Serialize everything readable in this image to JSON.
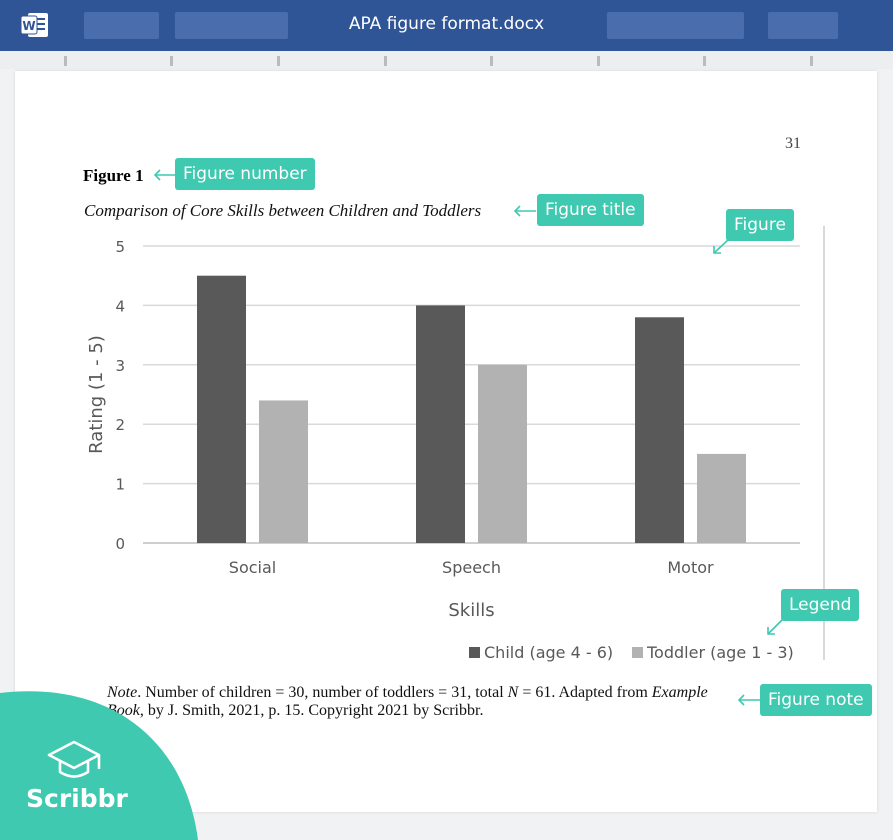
{
  "window": {
    "title": "APA figure format.docx",
    "app_icon": "word-icon"
  },
  "page": {
    "number": "31"
  },
  "figure": {
    "number_label": "Figure 1",
    "title": "Comparison of Core Skills between Children and Toddlers"
  },
  "note": {
    "label": "Note",
    "text1": ". Number of children = 30, number of toddlers = 31, total ",
    "n": "N",
    "text2": " = 61. Adapted from ",
    "book": "Example Book",
    "text3": ", by J. Smith, 2021, p. 15. Copyright 2021 by Scribbr."
  },
  "callouts": {
    "figure_number": "Figure number",
    "figure_title": "Figure title",
    "figure": "Figure",
    "legend": "Legend",
    "figure_note": "Figure note",
    "color": "#3ec9b0"
  },
  "brand": {
    "name": "Scribbr",
    "color": "#3ec9b0",
    "icon": "graduation-cap-icon"
  },
  "chart_data": {
    "type": "bar",
    "categories": [
      "Social",
      "Speech",
      "Motor"
    ],
    "series": [
      {
        "name": "Child (age 4 - 6)",
        "values": [
          4.5,
          4.0,
          3.8
        ],
        "color": "#595959"
      },
      {
        "name": "Toddler (age 1 - 3)",
        "values": [
          2.4,
          3.0,
          1.5
        ],
        "color": "#b2b2b2"
      }
    ],
    "xlabel": "Skills",
    "ylabel": "Rating (1 - 5)",
    "ylim": [
      0,
      5
    ],
    "yticks": [
      "0",
      "1",
      "2",
      "3",
      "4",
      "5"
    ],
    "grid": true,
    "legend": "bottom-right"
  }
}
